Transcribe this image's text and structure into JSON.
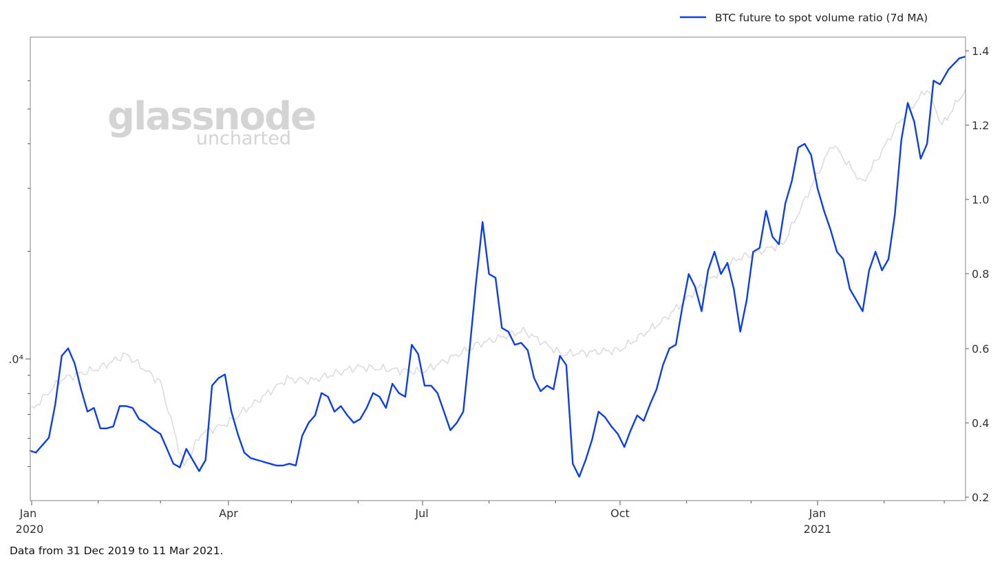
{
  "chart_data": {
    "type": "line",
    "title": "",
    "legend": {
      "position": "top-right",
      "entries": [
        {
          "label": "BTC future to spot volume ratio (7d MA)",
          "color": "#0a3cf0"
        }
      ]
    },
    "watermark": {
      "main": "glassnode",
      "sub": "uncharted"
    },
    "footnote": "Data from 31 Dec 2019 to 11 Mar 2021.",
    "x_axis": {
      "type": "date",
      "range": [
        "2019-12-31",
        "2021-03-11"
      ],
      "major_ticks": [
        {
          "label": "Jan",
          "sublabel": "2020",
          "date": "2020-01-01"
        },
        {
          "label": "Apr",
          "sublabel": "",
          "date": "2020-04-01"
        },
        {
          "label": "Jul",
          "sublabel": "",
          "date": "2020-07-01"
        },
        {
          "label": "Oct",
          "sublabel": "",
          "date": "2020-10-01"
        },
        {
          "label": "Jan",
          "sublabel": "2021",
          "date": "2021-01-01"
        }
      ],
      "minor_ticks": "monthly"
    },
    "y_axis_right": {
      "label": "",
      "range": [
        0.2,
        1.42
      ],
      "ticks": [
        "0.2",
        "0.4",
        "0.6",
        "0.8",
        "1.0",
        "1.2",
        "1.4"
      ]
    },
    "y_axis_left": {
      "label": "",
      "scale": "log",
      "visible_major_tick_label": ".0⁴",
      "major_tick_value": 10000,
      "note": "BTC price (gray line), log scale; tick label clipped at left edge"
    },
    "series": [
      {
        "name": "BTC future to spot volume ratio (7d MA)",
        "axis": "right",
        "color": "#0a3cf0",
        "points": [
          [
            "2019-12-31",
            0.325
          ],
          [
            "2020-01-03",
            0.32
          ],
          [
            "2020-01-06",
            0.34
          ],
          [
            "2020-01-09",
            0.36
          ],
          [
            "2020-01-12",
            0.45
          ],
          [
            "2020-01-15",
            0.58
          ],
          [
            "2020-01-18",
            0.6
          ],
          [
            "2020-01-21",
            0.56
          ],
          [
            "2020-01-24",
            0.49
          ],
          [
            "2020-01-27",
            0.43
          ],
          [
            "2020-01-30",
            0.44
          ],
          [
            "2020-02-02",
            0.385
          ],
          [
            "2020-02-05",
            0.385
          ],
          [
            "2020-02-08",
            0.39
          ],
          [
            "2020-02-11",
            0.445
          ],
          [
            "2020-02-14",
            0.445
          ],
          [
            "2020-02-17",
            0.44
          ],
          [
            "2020-02-20",
            0.41
          ],
          [
            "2020-02-23",
            0.4
          ],
          [
            "2020-02-26",
            0.385
          ],
          [
            "2020-03-01",
            0.37
          ],
          [
            "2020-03-04",
            0.33
          ],
          [
            "2020-03-07",
            0.29
          ],
          [
            "2020-03-10",
            0.28
          ],
          [
            "2020-03-13",
            0.33
          ],
          [
            "2020-03-16",
            0.3
          ],
          [
            "2020-03-19",
            0.27
          ],
          [
            "2020-03-22",
            0.3
          ],
          [
            "2020-03-25",
            0.5
          ],
          [
            "2020-03-28",
            0.52
          ],
          [
            "2020-03-31",
            0.53
          ],
          [
            "2020-04-03",
            0.43
          ],
          [
            "2020-04-06",
            0.37
          ],
          [
            "2020-04-09",
            0.32
          ],
          [
            "2020-04-12",
            0.305
          ],
          [
            "2020-04-15",
            0.3
          ],
          [
            "2020-04-18",
            0.295
          ],
          [
            "2020-04-21",
            0.29
          ],
          [
            "2020-04-24",
            0.285
          ],
          [
            "2020-04-27",
            0.285
          ],
          [
            "2020-04-30",
            0.29
          ],
          [
            "2020-05-03",
            0.285
          ],
          [
            "2020-05-06",
            0.365
          ],
          [
            "2020-05-09",
            0.4
          ],
          [
            "2020-05-12",
            0.42
          ],
          [
            "2020-05-15",
            0.48
          ],
          [
            "2020-05-18",
            0.47
          ],
          [
            "2020-05-21",
            0.43
          ],
          [
            "2020-05-24",
            0.445
          ],
          [
            "2020-05-27",
            0.42
          ],
          [
            "2020-05-30",
            0.4
          ],
          [
            "2020-06-02",
            0.41
          ],
          [
            "2020-06-05",
            0.44
          ],
          [
            "2020-06-08",
            0.48
          ],
          [
            "2020-06-11",
            0.47
          ],
          [
            "2020-06-14",
            0.44
          ],
          [
            "2020-06-17",
            0.505
          ],
          [
            "2020-06-20",
            0.48
          ],
          [
            "2020-06-23",
            0.47
          ],
          [
            "2020-06-26",
            0.61
          ],
          [
            "2020-06-29",
            0.585
          ],
          [
            "2020-07-02",
            0.5
          ],
          [
            "2020-07-05",
            0.5
          ],
          [
            "2020-07-08",
            0.48
          ],
          [
            "2020-07-11",
            0.43
          ],
          [
            "2020-07-14",
            0.38
          ],
          [
            "2020-07-17",
            0.4
          ],
          [
            "2020-07-20",
            0.43
          ],
          [
            "2020-07-23",
            0.6
          ],
          [
            "2020-07-26",
            0.78
          ],
          [
            "2020-07-29",
            0.94
          ],
          [
            "2020-08-01",
            0.8
          ],
          [
            "2020-08-04",
            0.79
          ],
          [
            "2020-08-07",
            0.655
          ],
          [
            "2020-08-10",
            0.645
          ],
          [
            "2020-08-13",
            0.61
          ],
          [
            "2020-08-16",
            0.615
          ],
          [
            "2020-08-19",
            0.595
          ],
          [
            "2020-08-22",
            0.52
          ],
          [
            "2020-08-25",
            0.485
          ],
          [
            "2020-08-28",
            0.5
          ],
          [
            "2020-08-31",
            0.49
          ],
          [
            "2020-09-03",
            0.58
          ],
          [
            "2020-09-06",
            0.555
          ],
          [
            "2020-09-09",
            0.29
          ],
          [
            "2020-09-12",
            0.255
          ],
          [
            "2020-09-15",
            0.3
          ],
          [
            "2020-09-18",
            0.355
          ],
          [
            "2020-09-21",
            0.43
          ],
          [
            "2020-09-24",
            0.415
          ],
          [
            "2020-09-27",
            0.39
          ],
          [
            "2020-09-30",
            0.37
          ],
          [
            "2020-10-03",
            0.335
          ],
          [
            "2020-10-06",
            0.38
          ],
          [
            "2020-10-09",
            0.42
          ],
          [
            "2020-10-12",
            0.405
          ],
          [
            "2020-10-15",
            0.45
          ],
          [
            "2020-10-18",
            0.49
          ],
          [
            "2020-10-21",
            0.555
          ],
          [
            "2020-10-24",
            0.6
          ],
          [
            "2020-10-27",
            0.61
          ],
          [
            "2020-10-30",
            0.71
          ],
          [
            "2020-11-02",
            0.8
          ],
          [
            "2020-11-05",
            0.765
          ],
          [
            "2020-11-08",
            0.7
          ],
          [
            "2020-11-11",
            0.81
          ],
          [
            "2020-11-14",
            0.86
          ],
          [
            "2020-11-17",
            0.8
          ],
          [
            "2020-11-20",
            0.83
          ],
          [
            "2020-11-23",
            0.76
          ],
          [
            "2020-11-26",
            0.645
          ],
          [
            "2020-11-29",
            0.73
          ],
          [
            "2020-12-02",
            0.86
          ],
          [
            "2020-12-05",
            0.87
          ],
          [
            "2020-12-08",
            0.97
          ],
          [
            "2020-12-11",
            0.9
          ],
          [
            "2020-12-14",
            0.88
          ],
          [
            "2020-12-17",
            0.99
          ],
          [
            "2020-12-20",
            1.05
          ],
          [
            "2020-12-23",
            1.14
          ],
          [
            "2020-12-26",
            1.15
          ],
          [
            "2020-12-29",
            1.12
          ],
          [
            "2021-01-01",
            1.03
          ],
          [
            "2021-01-04",
            0.97
          ],
          [
            "2021-01-07",
            0.92
          ],
          [
            "2021-01-10",
            0.86
          ],
          [
            "2021-01-13",
            0.84
          ],
          [
            "2021-01-16",
            0.76
          ],
          [
            "2021-01-19",
            0.73
          ],
          [
            "2021-01-22",
            0.7
          ],
          [
            "2021-01-25",
            0.81
          ],
          [
            "2021-01-28",
            0.86
          ],
          [
            "2021-01-31",
            0.81
          ],
          [
            "2021-02-03",
            0.84
          ],
          [
            "2021-02-06",
            0.96
          ],
          [
            "2021-02-09",
            1.16
          ],
          [
            "2021-02-12",
            1.26
          ],
          [
            "2021-02-15",
            1.21
          ],
          [
            "2021-02-18",
            1.11
          ],
          [
            "2021-02-21",
            1.15
          ],
          [
            "2021-02-24",
            1.32
          ],
          [
            "2021-02-27",
            1.31
          ],
          [
            "2021-03-03",
            1.35
          ],
          [
            "2021-03-08",
            1.38
          ],
          [
            "2021-03-11",
            1.385
          ]
        ]
      },
      {
        "name": "BTC price (gray, log scale, unlabeled)",
        "axis": "left",
        "color": "#dcdcdc",
        "approx_usd_points": [
          [
            "2020-01-01",
            7200
          ],
          [
            "2020-01-15",
            8800
          ],
          [
            "2020-02-01",
            9400
          ],
          [
            "2020-02-14",
            10300
          ],
          [
            "2020-03-01",
            8600
          ],
          [
            "2020-03-12",
            5000
          ],
          [
            "2020-03-20",
            6200
          ],
          [
            "2020-04-01",
            6600
          ],
          [
            "2020-04-29",
            8800
          ],
          [
            "2020-05-10",
            8700
          ],
          [
            "2020-06-01",
            9500
          ],
          [
            "2020-07-01",
            9200
          ],
          [
            "2020-07-27",
            11000
          ],
          [
            "2020-08-17",
            12000
          ],
          [
            "2020-09-04",
            10300
          ],
          [
            "2020-10-01",
            10600
          ],
          [
            "2020-10-21",
            12800
          ],
          [
            "2020-11-05",
            15500
          ],
          [
            "2020-11-24",
            19000
          ],
          [
            "2020-12-16",
            21000
          ],
          [
            "2021-01-08",
            40000
          ],
          [
            "2021-01-22",
            31000
          ],
          [
            "2021-02-08",
            46000
          ],
          [
            "2021-02-21",
            57000
          ],
          [
            "2021-02-28",
            45000
          ],
          [
            "2021-03-11",
            57000
          ]
        ]
      }
    ]
  },
  "legend": {
    "label": "BTC future to spot volume ratio (7d MA)"
  },
  "axes": {
    "x": {
      "jan2020": "Jan",
      "y2020": "2020",
      "apr": "Apr",
      "jul": "Jul",
      "oct": "Oct",
      "jan2021": "Jan",
      "y2021": "2021"
    },
    "right": {
      "t02": "0.2",
      "t04": "0.4",
      "t06": "0.6",
      "t08": "0.8",
      "t10": "1.0",
      "t12": "1.2",
      "t14": "1.4"
    },
    "left": {
      "major": ".0⁴"
    }
  },
  "watermark": {
    "main": "glassnode",
    "sub": "uncharted"
  },
  "footnote": "Data from 31 Dec 2019 to 11 Mar 2021.",
  "colors": {
    "ratio_line": "#0a3cf0",
    "price_line": "#dcdcdc",
    "axis": "#a0a0a0",
    "watermark": "#d4d4d4"
  }
}
